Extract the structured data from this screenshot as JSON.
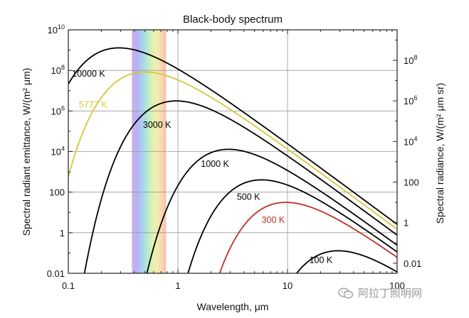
{
  "chart_data": {
    "type": "line",
    "title": "Black-body spectrum",
    "xlabel": "Wavelength, μm",
    "ylabel_left": "Spectral radiant emittance, W/(m² μm)",
    "ylabel_right": "Spectral radiance, W/(m² μm sr)",
    "x_scale": "log",
    "y_scale": "log",
    "xlim": [
      0.1,
      100
    ],
    "ylim_left": [
      0.01,
      10000000000
    ],
    "x_ticks": [
      {
        "value": 0.1,
        "label": "0.1"
      },
      {
        "value": 1,
        "label": "1"
      },
      {
        "value": 10,
        "label": "10"
      },
      {
        "value": 100,
        "label": "100"
      }
    ],
    "y_ticks_left": [
      {
        "value": 0.01,
        "label": "0.01"
      },
      {
        "value": 1,
        "label": "1"
      },
      {
        "value": 100,
        "label": "100"
      },
      {
        "value": 10000,
        "base": "10",
        "exp": "4"
      },
      {
        "value": 1000000,
        "base": "10",
        "exp": "6"
      },
      {
        "value": 100000000,
        "base": "10",
        "exp": "8"
      },
      {
        "value": 10000000000,
        "base": "10",
        "exp": "10"
      }
    ],
    "y_ticks_right": [
      {
        "value": 0.01,
        "label": "0.01"
      },
      {
        "value": 1,
        "label": "1"
      },
      {
        "value": 100,
        "label": "100"
      },
      {
        "value": 10000,
        "base": "10",
        "exp": "4"
      },
      {
        "value": 1000000,
        "base": "10",
        "exp": "6"
      },
      {
        "value": 100000000,
        "base": "10",
        "exp": "8"
      }
    ],
    "grid": true,
    "visible_band_um": [
      0.38,
      0.78
    ],
    "series": [
      {
        "name": "10000 K",
        "temperature_K": 10000,
        "color": "#000000"
      },
      {
        "name": "5777 K",
        "temperature_K": 5777,
        "color": "#d8c63a"
      },
      {
        "name": "3000 K",
        "temperature_K": 3000,
        "color": "#000000"
      },
      {
        "name": "1000 K",
        "temperature_K": 1000,
        "color": "#000000"
      },
      {
        "name": "500 K",
        "temperature_K": 500,
        "color": "#000000"
      },
      {
        "name": "300 K",
        "temperature_K": 300,
        "color": "#c0302a"
      },
      {
        "name": "100 K",
        "temperature_K": 100,
        "color": "#000000"
      }
    ]
  },
  "watermark": {
    "text": "阿拉丁照明网",
    "icon": "wechat-icon"
  }
}
